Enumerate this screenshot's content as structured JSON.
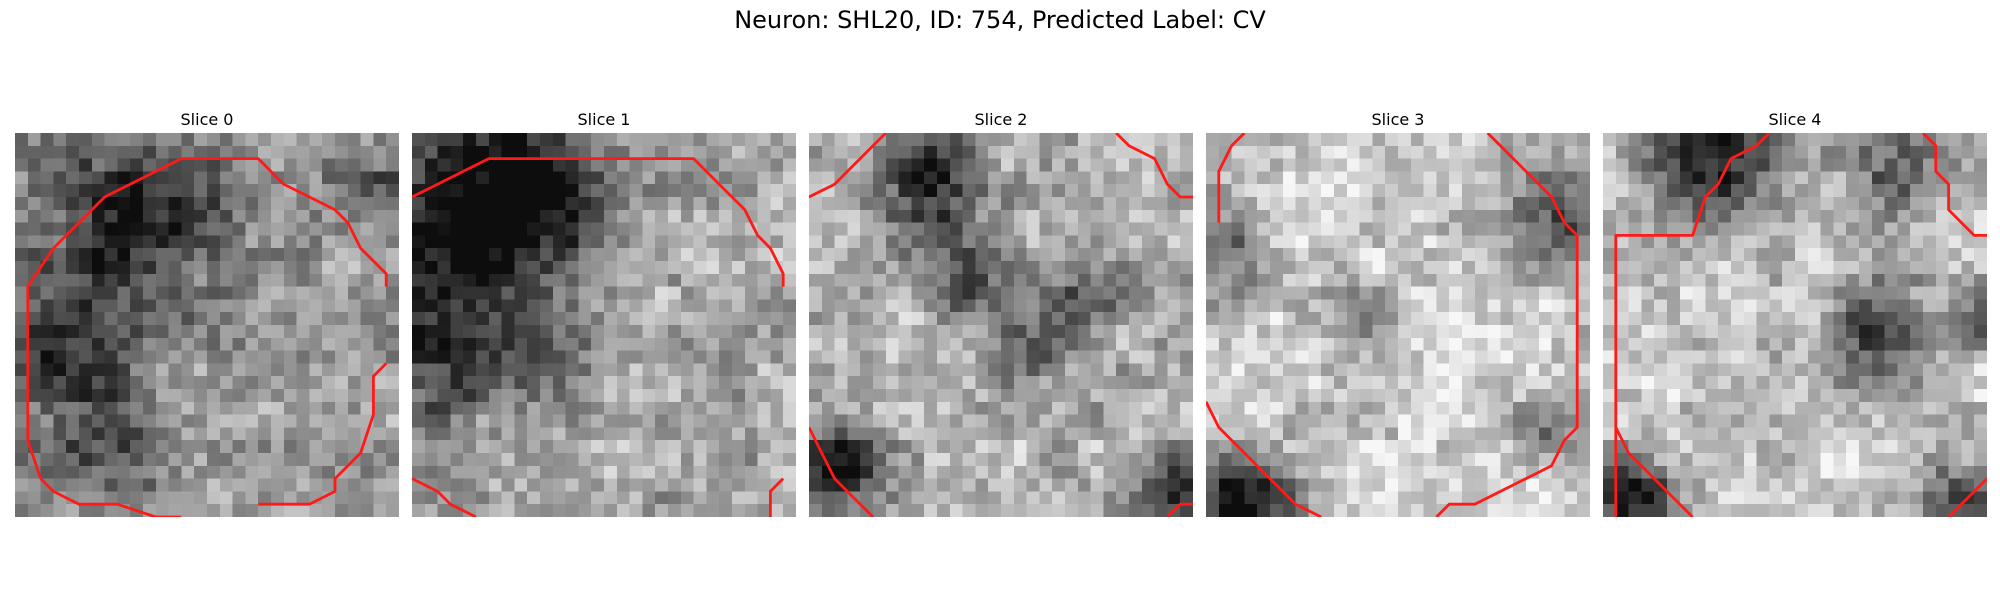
{
  "figure": {
    "title": "Neuron: SHL20, ID: 754, Predicted Label: CV"
  },
  "colors": {
    "contour": "#ff1a1a",
    "colormap": "grayscale"
  },
  "slices": [
    {
      "title": "Slice 0"
    },
    {
      "title": "Slice 1"
    },
    {
      "title": "Slice 2"
    },
    {
      "title": "Slice 3"
    },
    {
      "title": "Slice 4"
    }
  ]
}
